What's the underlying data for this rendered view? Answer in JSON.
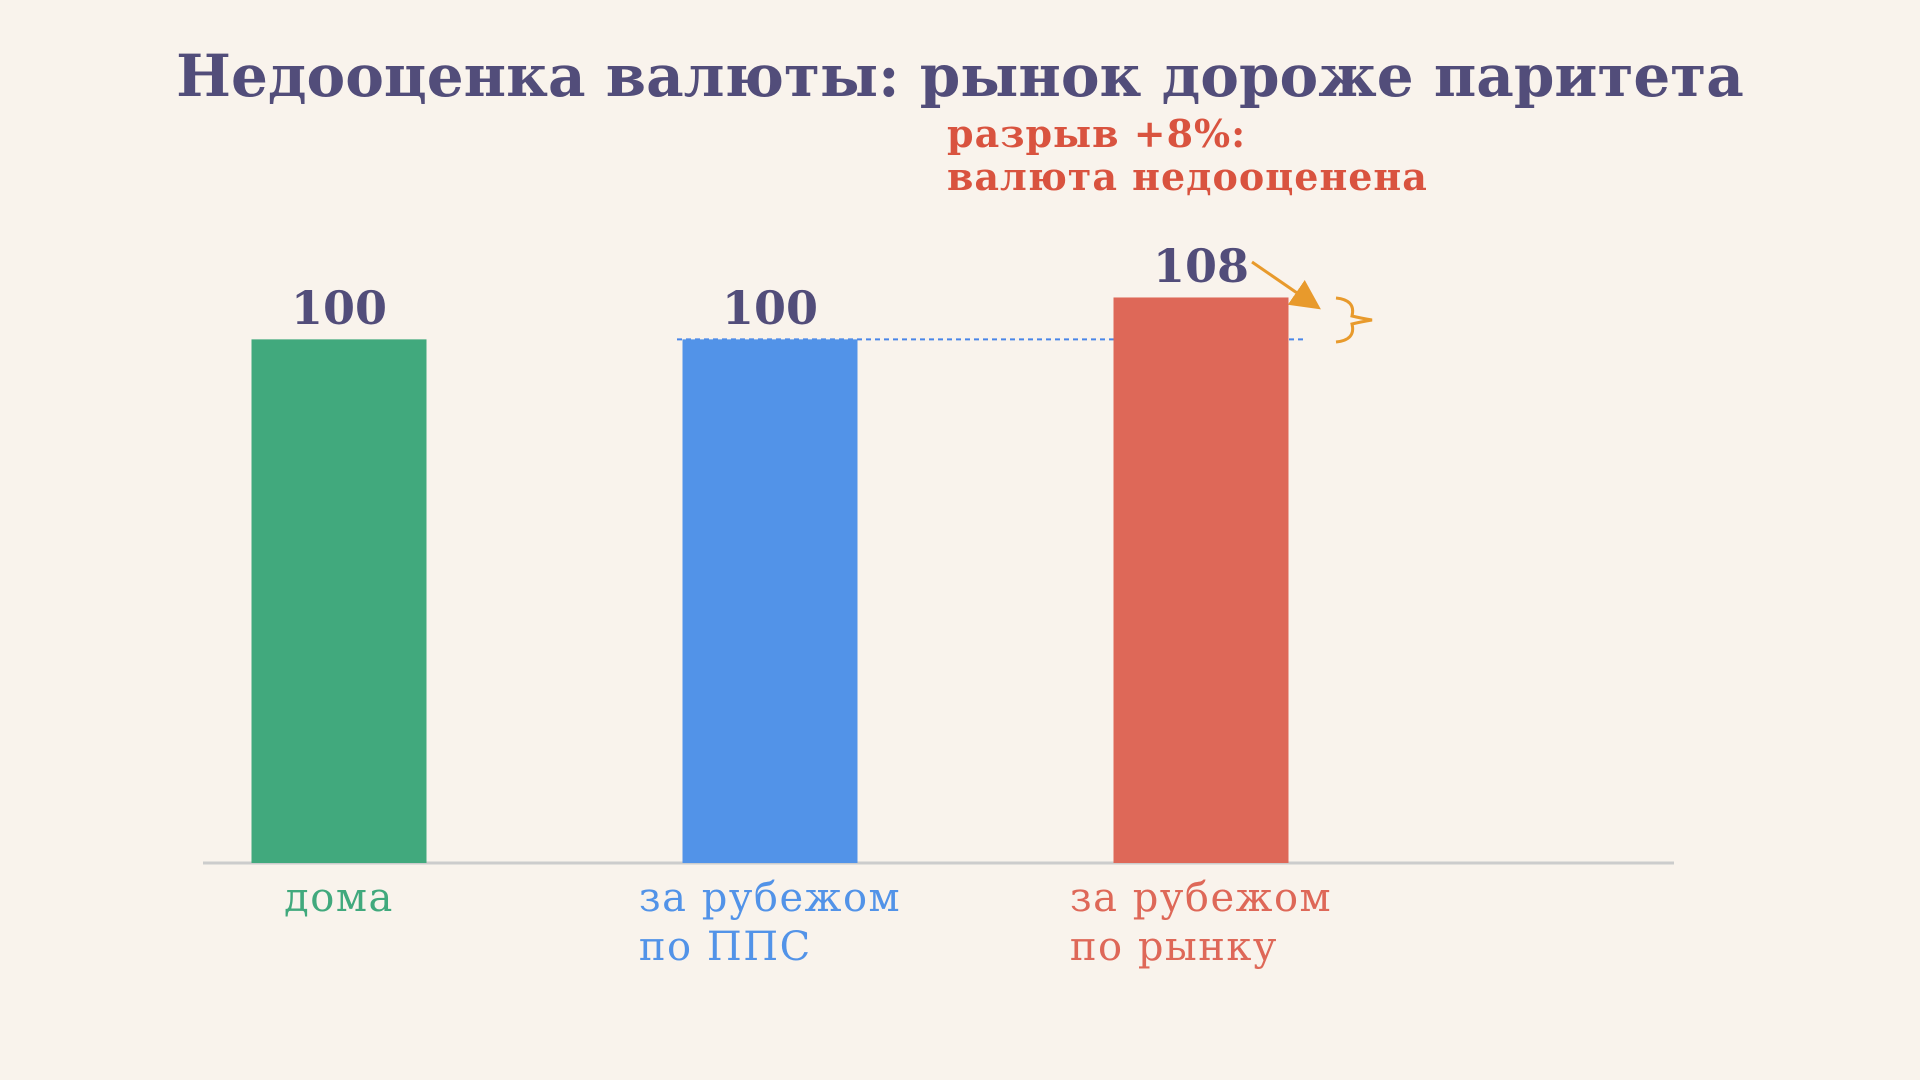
{
  "chart_data": {
    "type": "bar",
    "title": "Недооценка валюты: рынок дороже паритета",
    "annotation": "разрыв +8%:\nвалюта недооценена",
    "categories": [
      "дома",
      "за рубежом\nпо ППС",
      "за рубежом\nпо рынку"
    ],
    "values": [
      100,
      100,
      108
    ],
    "colors": [
      "#41a97d",
      "#5293e8",
      "#de6858"
    ],
    "reference_line": {
      "value": 100,
      "color": "#4a86e8"
    },
    "ylim": [
      0,
      110
    ],
    "grid": false
  }
}
